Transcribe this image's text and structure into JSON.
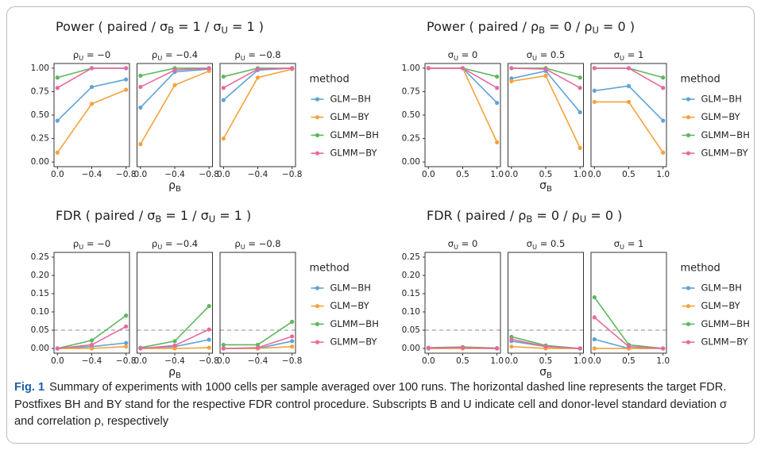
{
  "chart_data": [
    {
      "type": "line",
      "title": [
        "Power ( paired / σ",
        "B",
        " = 1 / σ",
        "U",
        " = 1 )"
      ],
      "xlabel": [
        "ρ",
        "B"
      ],
      "legend_title": "method",
      "x": [
        0,
        -0.4,
        -0.8
      ],
      "xlim": [
        0.04,
        -0.84
      ],
      "xticks": [
        {
          "value": 0,
          "label": "0.0"
        },
        {
          "value": -0.4,
          "label": "−0.4"
        },
        {
          "value": -0.8,
          "label": "−0.8"
        }
      ],
      "ylim": [
        -0.05,
        1.05
      ],
      "yticks": [
        {
          "value": 0,
          "label": "0.00"
        },
        {
          "value": 0.25,
          "label": "0.25"
        },
        {
          "value": 0.5,
          "label": "0.50"
        },
        {
          "value": 0.75,
          "label": "0.75"
        },
        {
          "value": 1,
          "label": "1.00"
        }
      ],
      "series": [
        {
          "name": "GLM−BH",
          "color": "#5fa3d6"
        },
        {
          "name": "GLM−BY",
          "color": "#f4a23c"
        },
        {
          "name": "GLMM−BH",
          "color": "#5cb85c"
        },
        {
          "name": "GLMM−BY",
          "color": "#e8699f"
        }
      ],
      "facets": [
        {
          "label": [
            "ρ",
            "U",
            " = −0"
          ],
          "values": [
            [
              0.44,
              0.8,
              0.88
            ],
            [
              0.1,
              0.62,
              0.77
            ],
            [
              0.9,
              1.0,
              1.0
            ],
            [
              0.79,
              1.0,
              1.0
            ]
          ]
        },
        {
          "label": [
            "ρ",
            "U",
            " = −0.4"
          ],
          "values": [
            [
              0.58,
              0.96,
              0.99
            ],
            [
              0.19,
              0.82,
              0.97
            ],
            [
              0.92,
              1.0,
              1.0
            ],
            [
              0.8,
              0.98,
              1.0
            ]
          ]
        },
        {
          "label": [
            "ρ",
            "U",
            " = −0.8"
          ],
          "values": [
            [
              0.66,
              0.98,
              1.0
            ],
            [
              0.25,
              0.9,
              0.99
            ],
            [
              0.91,
              1.0,
              1.0
            ],
            [
              0.79,
              0.99,
              1.0
            ]
          ]
        }
      ]
    },
    {
      "type": "line",
      "title": [
        "Power ( paired / ρ",
        "B",
        " = 0 / ρ",
        "U",
        " = 0 )"
      ],
      "xlabel": [
        "σ",
        "B"
      ],
      "legend_title": "method",
      "x": [
        0,
        0.5,
        1
      ],
      "xlim": [
        -0.05,
        1.05
      ],
      "xticks": [
        {
          "value": 0,
          "label": "0.0"
        },
        {
          "value": 0.5,
          "label": "0.5"
        },
        {
          "value": 1,
          "label": "1.0"
        }
      ],
      "ylim": [
        -0.05,
        1.05
      ],
      "yticks": [
        {
          "value": 0,
          "label": "0.00"
        },
        {
          "value": 0.25,
          "label": "0.25"
        },
        {
          "value": 0.5,
          "label": "0.50"
        },
        {
          "value": 0.75,
          "label": "0.75"
        },
        {
          "value": 1,
          "label": "1.00"
        }
      ],
      "series": [
        {
          "name": "GLM−BH",
          "color": "#5fa3d6"
        },
        {
          "name": "GLM−BY",
          "color": "#f4a23c"
        },
        {
          "name": "GLMM−BH",
          "color": "#5cb85c"
        },
        {
          "name": "GLMM−BY",
          "color": "#e8699f"
        }
      ],
      "facets": [
        {
          "label": [
            "σ",
            "U",
            " = 0"
          ],
          "values": [
            [
              1.0,
              1.0,
              0.63
            ],
            [
              1.0,
              1.0,
              0.21
            ],
            [
              1.0,
              1.0,
              0.91
            ],
            [
              1.0,
              1.0,
              0.79
            ]
          ]
        },
        {
          "label": [
            "σ",
            "U",
            " = 0.5"
          ],
          "values": [
            [
              0.89,
              0.97,
              0.53
            ],
            [
              0.86,
              0.92,
              0.15
            ],
            [
              1.0,
              1.0,
              0.9
            ],
            [
              1.0,
              0.99,
              0.79
            ]
          ]
        },
        {
          "label": [
            "σ",
            "U",
            " = 1"
          ],
          "values": [
            [
              0.76,
              0.81,
              0.44
            ],
            [
              0.64,
              0.64,
              0.1
            ],
            [
              1.0,
              1.0,
              0.9
            ],
            [
              1.0,
              1.0,
              0.79
            ]
          ]
        }
      ]
    },
    {
      "type": "line",
      "title": [
        "FDR ( paired / σ",
        "B",
        " = 1 / σ",
        "U",
        " = 1 )"
      ],
      "xlabel": [
        "ρ",
        "B"
      ],
      "legend_title": "method",
      "target": 0.05,
      "x": [
        0,
        -0.4,
        -0.8
      ],
      "xlim": [
        0.04,
        -0.84
      ],
      "xticks": [
        {
          "value": 0,
          "label": "0.0"
        },
        {
          "value": -0.4,
          "label": "−0.4"
        },
        {
          "value": -0.8,
          "label": "−0.8"
        }
      ],
      "ylim": [
        -0.013,
        0.263
      ],
      "yticks": [
        {
          "value": 0,
          "label": "0.00"
        },
        {
          "value": 0.05,
          "label": "0.05"
        },
        {
          "value": 0.1,
          "label": "0.10"
        },
        {
          "value": 0.15,
          "label": "0.15"
        },
        {
          "value": 0.2,
          "label": "0.20"
        },
        {
          "value": 0.25,
          "label": "0.25"
        }
      ],
      "series": [
        {
          "name": "GLM−BH",
          "color": "#5fa3d6"
        },
        {
          "name": "GLM−BY",
          "color": "#f4a23c"
        },
        {
          "name": "GLMM−BH",
          "color": "#5cb85c"
        },
        {
          "name": "GLMM−BY",
          "color": "#e8699f"
        }
      ],
      "facets": [
        {
          "label": [
            "ρ",
            "U",
            " = −0"
          ],
          "values": [
            [
              0,
              0.005,
              0.015
            ],
            [
              0,
              0,
              0.005
            ],
            [
              0,
              0.022,
              0.09
            ],
            [
              0,
              0.01,
              0.06
            ]
          ]
        },
        {
          "label": [
            "ρ",
            "U",
            " = −0.4"
          ],
          "values": [
            [
              0,
              0.005,
              0.024
            ],
            [
              0,
              0,
              0.002
            ],
            [
              0.002,
              0.02,
              0.116
            ],
            [
              0,
              0.008,
              0.052
            ]
          ]
        },
        {
          "label": [
            "ρ",
            "U",
            " = −0.8"
          ],
          "values": [
            [
              0,
              0,
              0.02
            ],
            [
              0,
              0,
              0.005
            ],
            [
              0.01,
              0.01,
              0.073
            ],
            [
              0,
              0.002,
              0.033
            ]
          ]
        }
      ]
    },
    {
      "type": "line",
      "title": [
        "FDR ( paired / ρ",
        "B",
        " = 0 / ρ",
        "U",
        " = 0 )"
      ],
      "xlabel": [
        "σ",
        "B"
      ],
      "legend_title": "method",
      "target": 0.05,
      "x": [
        0,
        0.5,
        1
      ],
      "xlim": [
        -0.05,
        1.05
      ],
      "xticks": [
        {
          "value": 0,
          "label": "0.0"
        },
        {
          "value": 0.5,
          "label": "0.5"
        },
        {
          "value": 1,
          "label": "1.0"
        }
      ],
      "ylim": [
        -0.013,
        0.263
      ],
      "yticks": [
        {
          "value": 0,
          "label": "0.00"
        },
        {
          "value": 0.05,
          "label": "0.05"
        },
        {
          "value": 0.1,
          "label": "0.10"
        },
        {
          "value": 0.15,
          "label": "0.15"
        },
        {
          "value": 0.2,
          "label": "0.20"
        },
        {
          "value": 0.25,
          "label": "0.25"
        }
      ],
      "series": [
        {
          "name": "GLM−BH",
          "color": "#5fa3d6"
        },
        {
          "name": "GLM−BY",
          "color": "#f4a23c"
        },
        {
          "name": "GLMM−BH",
          "color": "#5cb85c"
        },
        {
          "name": "GLMM−BY",
          "color": "#e8699f"
        }
      ],
      "facets": [
        {
          "label": [
            "σ",
            "U",
            " = 0"
          ],
          "values": [
            [
              0,
              0.002,
              0
            ],
            [
              0,
              0,
              0
            ],
            [
              0.002,
              0.004,
              0.001
            ],
            [
              0.001,
              0.002,
              0
            ]
          ]
        },
        {
          "label": [
            "σ",
            "U",
            " = 0.5"
          ],
          "values": [
            [
              0.02,
              0.005,
              0
            ],
            [
              0.005,
              0,
              0
            ],
            [
              0.032,
              0.008,
              0
            ],
            [
              0.025,
              0.005,
              0
            ]
          ]
        },
        {
          "label": [
            "σ",
            "U",
            " = 1"
          ],
          "values": [
            [
              0.025,
              0,
              0
            ],
            [
              0,
              0,
              0
            ],
            [
              0.14,
              0.01,
              0
            ],
            [
              0.085,
              0.005,
              0
            ]
          ]
        }
      ]
    }
  ],
  "figure": {
    "caption_label": "Fig. 1",
    "caption": "Summary of experiments with 1000 cells per sample averaged over 100 runs. The horizontal dashed line represents the target FDR. Postfixes BH and BY stand for the respective FDR control procedure. Subscripts B and U indicate cell and donor-level standard deviation σ and correlation ρ, respectively"
  }
}
